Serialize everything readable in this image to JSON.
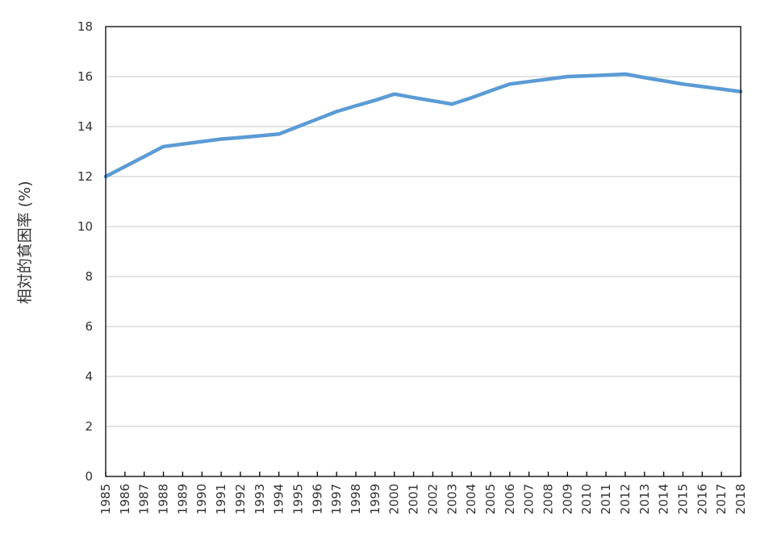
{
  "chart_data": {
    "type": "line",
    "title": "",
    "xlabel": "",
    "ylabel": "相対的貧困率 (%)",
    "ylim": [
      0,
      18
    ],
    "yticks": [
      0,
      2,
      4,
      6,
      8,
      10,
      12,
      14,
      16,
      18
    ],
    "grid": "horizontal",
    "legend": "none",
    "categories": [
      "1985",
      "1986",
      "1987",
      "1988",
      "1989",
      "1990",
      "1991",
      "1992",
      "1993",
      "1994",
      "1995",
      "1996",
      "1997",
      "1998",
      "1999",
      "2000",
      "2001",
      "2002",
      "2003",
      "2004",
      "2005",
      "2006",
      "2007",
      "2008",
      "2009",
      "2010",
      "2011",
      "2012",
      "2013",
      "2014",
      "2015",
      "2016",
      "2017",
      "2018"
    ],
    "series": [
      {
        "color": "#5b9bd5",
        "values": [
          12.0,
          12.4,
          12.8,
          13.2,
          13.3,
          13.4,
          13.5,
          13.56,
          13.63,
          13.7,
          14.0,
          14.3,
          14.6,
          14.83,
          15.05,
          15.3,
          15.16,
          15.03,
          14.9,
          15.15,
          15.43,
          15.7,
          15.8,
          15.9,
          16.0,
          16.03,
          16.06,
          16.1,
          15.96,
          15.83,
          15.7,
          15.6,
          15.5,
          15.4
        ]
      }
    ]
  }
}
